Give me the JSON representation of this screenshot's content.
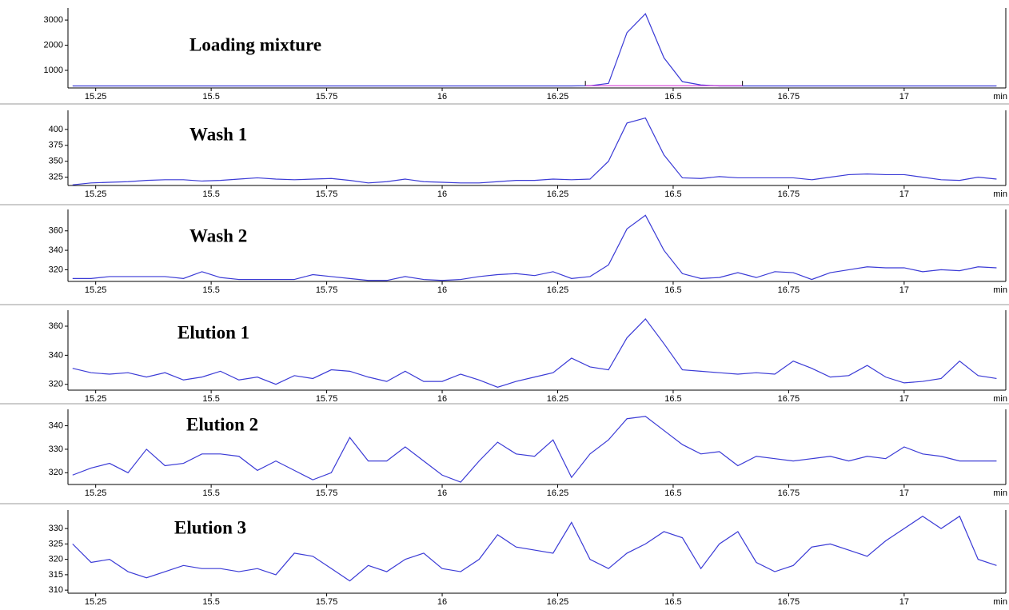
{
  "chart_data": [
    {
      "type": "line",
      "title": "Loading mixture",
      "x_label": "min",
      "color": "#3b3bd6",
      "x": [
        15.2,
        15.24,
        15.28,
        15.32,
        15.36,
        15.4,
        15.44,
        15.48,
        15.52,
        15.56,
        15.6,
        15.64,
        15.68,
        15.72,
        15.76,
        15.8,
        15.84,
        15.88,
        15.92,
        15.96,
        16,
        16.04,
        16.08,
        16.12,
        16.16,
        16.2,
        16.24,
        16.28,
        16.32,
        16.36,
        16.4,
        16.44,
        16.48,
        16.52,
        16.56,
        16.6,
        16.64,
        16.68,
        16.72,
        16.76,
        16.8,
        16.84,
        16.88,
        16.92,
        16.96,
        17,
        17.04,
        17.08,
        17.12,
        17.16,
        17.2
      ],
      "values": [
        380,
        380,
        380,
        380,
        380,
        380,
        380,
        380,
        380,
        380,
        380,
        380,
        380,
        380,
        380,
        380,
        380,
        380,
        380,
        380,
        380,
        380,
        380,
        380,
        380,
        380,
        380,
        380,
        390,
        480,
        2500,
        3250,
        1500,
        550,
        420,
        380,
        380,
        380,
        380,
        380,
        380,
        380,
        380,
        380,
        380,
        380,
        380,
        380,
        380,
        380,
        380
      ],
      "baseline": {
        "x": [
          16.31,
          16.65
        ],
        "values": [
          390,
          390
        ],
        "color": "#d63bd6"
      },
      "xlim": [
        15.19,
        17.22
      ],
      "ylim": [
        300,
        3480
      ],
      "xticks": [
        15.25,
        15.5,
        15.75,
        16,
        16.25,
        16.5,
        16.75,
        17
      ],
      "yticks": [
        1000,
        2000,
        3000
      ]
    },
    {
      "type": "line",
      "title": "Wash 1",
      "x_label": "min",
      "color": "#3b3bd6",
      "x": [
        15.2,
        15.24,
        15.28,
        15.32,
        15.36,
        15.4,
        15.44,
        15.48,
        15.52,
        15.56,
        15.6,
        15.64,
        15.68,
        15.72,
        15.76,
        15.8,
        15.84,
        15.88,
        15.92,
        15.96,
        16,
        16.04,
        16.08,
        16.12,
        16.16,
        16.2,
        16.24,
        16.28,
        16.32,
        16.36,
        16.4,
        16.44,
        16.48,
        16.52,
        16.56,
        16.6,
        16.64,
        16.68,
        16.72,
        16.76,
        16.8,
        16.84,
        16.88,
        16.92,
        16.96,
        17,
        17.04,
        17.08,
        17.12,
        17.16,
        17.2
      ],
      "values": [
        313,
        316,
        317,
        318,
        320,
        321,
        321,
        319,
        320,
        322,
        324,
        322,
        321,
        322,
        323,
        320,
        316,
        318,
        322,
        318,
        317,
        316,
        316,
        318,
        320,
        320,
        322,
        321,
        322,
        350,
        410,
        418,
        360,
        324,
        323,
        326,
        324,
        324,
        324,
        324,
        321,
        325,
        329,
        330,
        329,
        329,
        325,
        321,
        320,
        325,
        322
      ],
      "xlim": [
        15.19,
        17.22
      ],
      "ylim": [
        312,
        430
      ],
      "xticks": [
        15.25,
        15.5,
        15.75,
        16,
        16.25,
        16.5,
        16.75,
        17
      ],
      "yticks": [
        325,
        350,
        375,
        400
      ]
    },
    {
      "type": "line",
      "title": "Wash 2",
      "x_label": "min",
      "color": "#3b3bd6",
      "x": [
        15.2,
        15.24,
        15.28,
        15.32,
        15.36,
        15.4,
        15.44,
        15.48,
        15.52,
        15.56,
        15.6,
        15.64,
        15.68,
        15.72,
        15.76,
        15.8,
        15.84,
        15.88,
        15.92,
        15.96,
        16,
        16.04,
        16.08,
        16.12,
        16.16,
        16.2,
        16.24,
        16.28,
        16.32,
        16.36,
        16.4,
        16.44,
        16.48,
        16.52,
        16.56,
        16.6,
        16.64,
        16.68,
        16.72,
        16.76,
        16.8,
        16.84,
        16.88,
        16.92,
        16.96,
        17,
        17.04,
        17.08,
        17.12,
        17.16,
        17.2
      ],
      "values": [
        311,
        311,
        313,
        313,
        313,
        313,
        311,
        318,
        312,
        310,
        310,
        310,
        310,
        315,
        313,
        311,
        309,
        309,
        313,
        310,
        309,
        310,
        313,
        315,
        316,
        314,
        318,
        311,
        313,
        325,
        362,
        376,
        340,
        316,
        311,
        312,
        317,
        312,
        318,
        317,
        310,
        317,
        320,
        323,
        322,
        322,
        318,
        320,
        319,
        323,
        322
      ],
      "xlim": [
        15.19,
        17.22
      ],
      "ylim": [
        308,
        382
      ],
      "xticks": [
        15.25,
        15.5,
        15.75,
        16,
        16.25,
        16.5,
        16.75,
        17
      ],
      "yticks": [
        320,
        340,
        360
      ]
    },
    {
      "type": "line",
      "title": "Elution 1",
      "x_label": "min",
      "color": "#3b3bd6",
      "x": [
        15.2,
        15.24,
        15.28,
        15.32,
        15.36,
        15.4,
        15.44,
        15.48,
        15.52,
        15.56,
        15.6,
        15.64,
        15.68,
        15.72,
        15.76,
        15.8,
        15.84,
        15.88,
        15.92,
        15.96,
        16,
        16.04,
        16.08,
        16.12,
        16.16,
        16.2,
        16.24,
        16.28,
        16.32,
        16.36,
        16.4,
        16.44,
        16.48,
        16.52,
        16.56,
        16.6,
        16.64,
        16.68,
        16.72,
        16.76,
        16.8,
        16.84,
        16.88,
        16.92,
        16.96,
        17,
        17.04,
        17.08,
        17.12,
        17.16,
        17.2
      ],
      "values": [
        331,
        328,
        327,
        328,
        325,
        328,
        323,
        325,
        329,
        323,
        325,
        320,
        326,
        324,
        330,
        329,
        325,
        322,
        329,
        322,
        322,
        327,
        323,
        318,
        322,
        325,
        328,
        338,
        332,
        330,
        352,
        365,
        348,
        330,
        329,
        328,
        327,
        328,
        327,
        336,
        331,
        325,
        326,
        333,
        325,
        321,
        322,
        324,
        336,
        326,
        324
      ],
      "xlim": [
        15.19,
        17.22
      ],
      "ylim": [
        316,
        371
      ],
      "xticks": [
        15.25,
        15.5,
        15.75,
        16,
        16.25,
        16.5,
        16.75,
        17
      ],
      "yticks": [
        320,
        340,
        360
      ]
    },
    {
      "type": "line",
      "title": "Elution 2",
      "x_label": "min",
      "color": "#3b3bd6",
      "x": [
        15.2,
        15.24,
        15.28,
        15.32,
        15.36,
        15.4,
        15.44,
        15.48,
        15.52,
        15.56,
        15.6,
        15.64,
        15.68,
        15.72,
        15.76,
        15.8,
        15.84,
        15.88,
        15.92,
        15.96,
        16,
        16.04,
        16.08,
        16.12,
        16.16,
        16.2,
        16.24,
        16.28,
        16.32,
        16.36,
        16.4,
        16.44,
        16.48,
        16.52,
        16.56,
        16.6,
        16.64,
        16.68,
        16.72,
        16.76,
        16.8,
        16.84,
        16.88,
        16.92,
        16.96,
        17,
        17.04,
        17.08,
        17.12,
        17.16,
        17.2
      ],
      "values": [
        319,
        322,
        324,
        320,
        330,
        323,
        324,
        328,
        328,
        327,
        321,
        325,
        321,
        317,
        320,
        335,
        325,
        325,
        331,
        325,
        319,
        316,
        325,
        333,
        328,
        327,
        334,
        318,
        328,
        334,
        343,
        344,
        338,
        332,
        328,
        329,
        323,
        327,
        326,
        325,
        326,
        327,
        325,
        327,
        326,
        331,
        328,
        327,
        325,
        325,
        325
      ],
      "xlim": [
        15.19,
        17.22
      ],
      "ylim": [
        315,
        347
      ],
      "xticks": [
        15.25,
        15.5,
        15.75,
        16,
        16.25,
        16.5,
        16.75,
        17
      ],
      "yticks": [
        320,
        330,
        340
      ]
    },
    {
      "type": "line",
      "title": "Elution 3",
      "x_label": "min",
      "color": "#3b3bd6",
      "x": [
        15.2,
        15.24,
        15.28,
        15.32,
        15.36,
        15.4,
        15.44,
        15.48,
        15.52,
        15.56,
        15.6,
        15.64,
        15.68,
        15.72,
        15.76,
        15.8,
        15.84,
        15.88,
        15.92,
        15.96,
        16,
        16.04,
        16.08,
        16.12,
        16.16,
        16.2,
        16.24,
        16.28,
        16.32,
        16.36,
        16.4,
        16.44,
        16.48,
        16.52,
        16.56,
        16.6,
        16.64,
        16.68,
        16.72,
        16.76,
        16.8,
        16.84,
        16.88,
        16.92,
        16.96,
        17,
        17.04,
        17.08,
        17.12,
        17.16,
        17.2
      ],
      "values": [
        325,
        319,
        320,
        316,
        314,
        316,
        318,
        317,
        317,
        316,
        317,
        315,
        322,
        321,
        317,
        313,
        318,
        316,
        320,
        322,
        317,
        316,
        320,
        328,
        324,
        323,
        322,
        332,
        320,
        317,
        322,
        325,
        329,
        327,
        317,
        325,
        329,
        319,
        316,
        318,
        324,
        325,
        323,
        321,
        326,
        330,
        334,
        330,
        334,
        320,
        318
      ],
      "xlim": [
        15.19,
        17.22
      ],
      "ylim": [
        309,
        336
      ],
      "xticks": [
        15.25,
        15.5,
        15.75,
        16,
        16.25,
        16.5,
        16.75,
        17
      ],
      "yticks": [
        310,
        315,
        320,
        325,
        330
      ]
    }
  ]
}
